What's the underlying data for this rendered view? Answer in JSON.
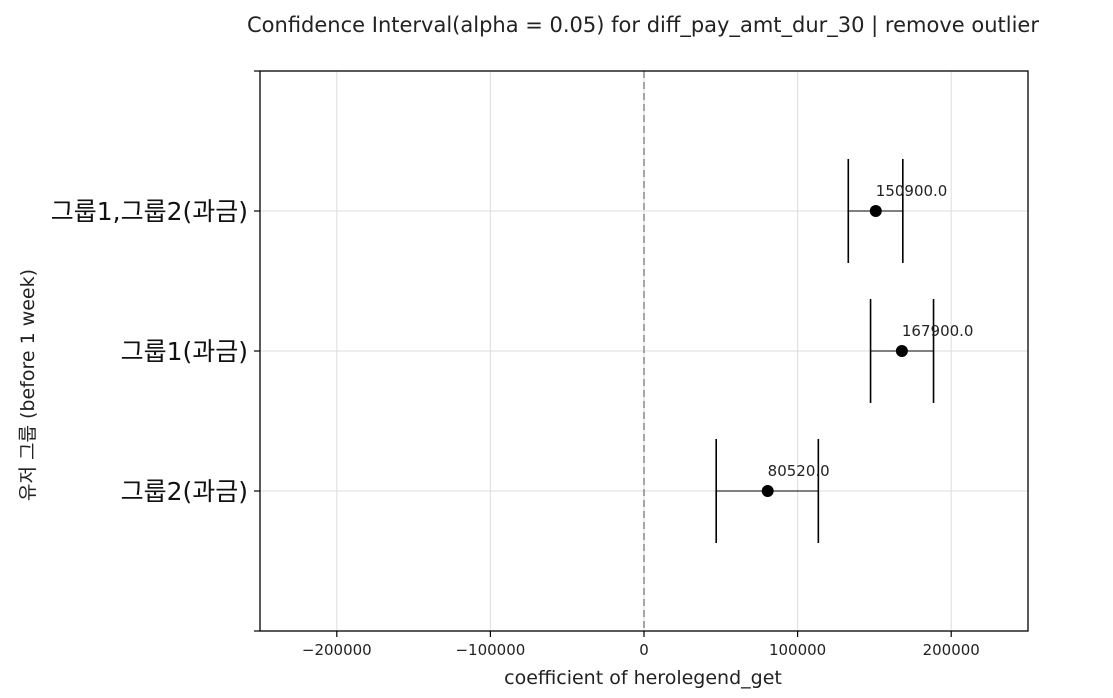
{
  "chart_data": {
    "type": "scatter",
    "title": "Confidence Interval(alpha = 0.05) for diff_pay_amt_dur_30 | remove outlier",
    "xlabel": "coefficient of herolegend_get",
    "ylabel": "유저 그룹 (before 1 week)",
    "xlim": [
      -250000,
      250000
    ],
    "xticks": [
      -200000,
      -100000,
      0,
      100000,
      200000
    ],
    "xtick_labels": [
      "−200000",
      "−100000",
      "0",
      "100000",
      "200000"
    ],
    "reference_line_x": 0,
    "grid": true,
    "categories": [
      "그룹1,그룹2(과금)",
      "그룹1(과금)",
      "그룹2(과금)"
    ],
    "points": [
      {
        "category": "그룹1,그룹2(과금)",
        "estimate": 150900.0,
        "ci_low": 133000,
        "ci_high": 168500,
        "label": "150900.0"
      },
      {
        "category": "그룹1(과금)",
        "estimate": 167900.0,
        "ci_low": 147500,
        "ci_high": 188500,
        "label": "167900.0"
      },
      {
        "category": "그룹2(과금)",
        "estimate": 80520.0,
        "ci_low": 47000,
        "ci_high": 113500,
        "label": "80520.0"
      }
    ],
    "colors": {
      "marker": "#000000",
      "errorbar": "#000000",
      "grid": "#dddddd",
      "reference_line": "#888888",
      "axes": "#000000"
    }
  }
}
